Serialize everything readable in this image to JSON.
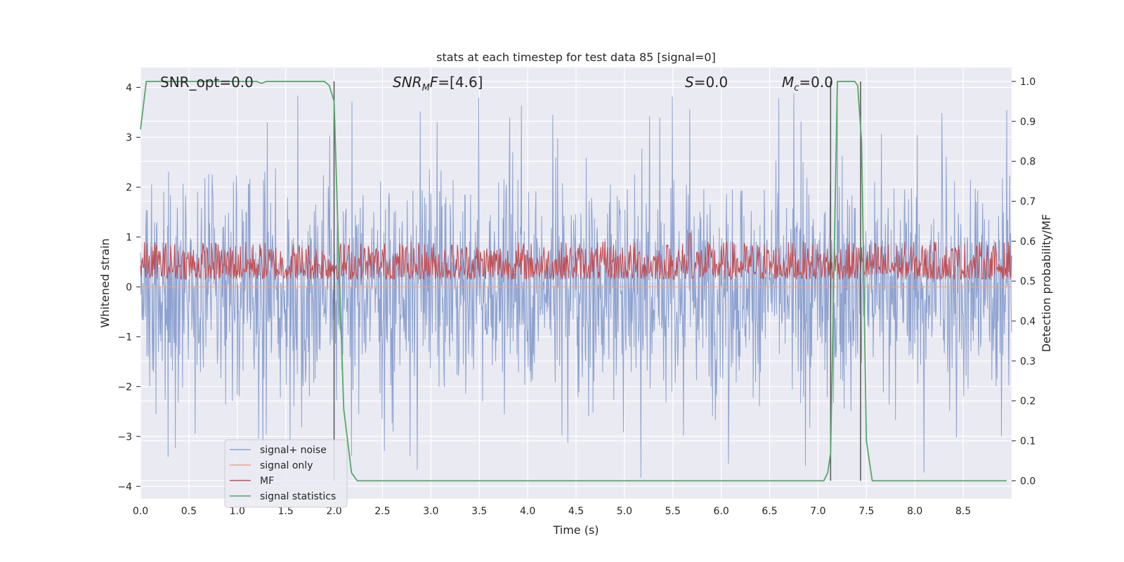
{
  "chart_data": {
    "type": "line",
    "title": "stats at each timestep for test data 85 [signal=0]",
    "xlabel": "Time (s)",
    "ylabel": "Whitened strain",
    "y2label": "Detection probability/MF",
    "xlim": [
      0.0,
      9.0
    ],
    "ylim": [
      -4.25,
      4.4
    ],
    "y2lim": [
      -0.045,
      1.035
    ],
    "xticks": [
      0.0,
      0.5,
      1.0,
      1.5,
      2.0,
      2.5,
      3.0,
      3.5,
      4.0,
      4.5,
      5.0,
      5.5,
      6.0,
      6.5,
      7.0,
      7.5,
      8.0,
      8.5
    ],
    "xtick_labels": [
      "0.0",
      "0.5",
      "1.0",
      "1.5",
      "2.0",
      "2.5",
      "3.0",
      "3.5",
      "4.0",
      "4.5",
      "5.0",
      "5.5",
      "6.0",
      "6.5",
      "7.0",
      "7.5",
      "8.0",
      "8.5"
    ],
    "yticks": [
      -4,
      -3,
      -2,
      -1,
      0,
      1,
      2,
      3,
      4
    ],
    "ytick_labels": [
      "−4",
      "−3",
      "−2",
      "−1",
      "0",
      "1",
      "2",
      "3",
      "4"
    ],
    "y2ticks": [
      0.0,
      0.1,
      0.2,
      0.3,
      0.4,
      0.5,
      0.6,
      0.7,
      0.8,
      0.9,
      1.0
    ],
    "y2tick_labels": [
      "0.0",
      "0.1",
      "0.2",
      "0.3",
      "0.4",
      "0.5",
      "0.6",
      "0.7",
      "0.8",
      "0.9",
      "1.0"
    ],
    "grid": true,
    "annotations": {
      "snr_opt": "SNR_opt=0.0",
      "snr_mf": "=[4.6]",
      "s_value": "=0.0",
      "mc_value": "=0.0"
    },
    "legend": {
      "placement": "lower-left",
      "entries": [
        "signal+ noise",
        "signal only",
        "MF",
        "signal statistics"
      ]
    },
    "colors": {
      "signal_noise": "#8da2d0",
      "signal_only": "#f0a585",
      "mf": "#c44e52",
      "statistic": "#55a868",
      "markers": "#555555"
    },
    "series": [
      {
        "name": "signal+ noise",
        "axis": "left",
        "description_range": [
          -3.9,
          3.9
        ],
        "band_x": [
          0.0,
          9.0
        ],
        "band_y": [
          -1.7,
          1.7
        ]
      },
      {
        "name": "signal only",
        "axis": "left",
        "x": [
          0.0,
          9.0
        ],
        "y": [
          0.0,
          0.0
        ]
      },
      {
        "name": "MF",
        "axis": "right",
        "band_x": [
          0.0,
          9.0
        ],
        "band_y": [
          0.505,
          0.6
        ],
        "peak_x": 5.68,
        "peak": 0.62
      },
      {
        "name": "signal statistics",
        "axis": "right",
        "x": [
          0.0,
          0.06,
          1.2,
          1.25,
          1.3,
          1.9,
          1.95,
          2.0,
          2.05,
          2.1,
          2.18,
          2.24,
          2.28,
          7.06,
          7.1,
          7.13,
          7.2,
          7.38,
          7.41,
          7.45,
          7.5,
          7.56,
          7.6,
          8.95
        ],
        "y": [
          0.88,
          1.0,
          1.0,
          0.995,
          1.0,
          1.0,
          0.99,
          0.95,
          0.55,
          0.18,
          0.02,
          0.0,
          0.0,
          0.0,
          0.02,
          0.07,
          1.0,
          1.0,
          0.99,
          0.85,
          0.1,
          0.0,
          0.0,
          0.0
        ]
      }
    ],
    "vertical_markers": [
      2.0,
      7.13,
      7.44
    ]
  }
}
